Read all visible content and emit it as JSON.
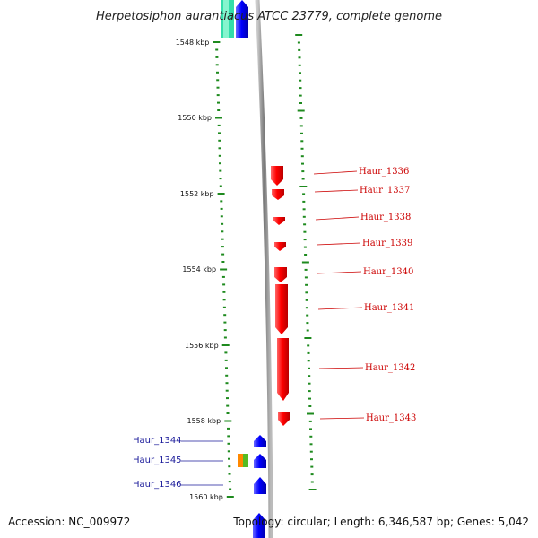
{
  "title": "Herpetosiphon aurantiacus ATCC 23779, complete genome",
  "accession": "Accession: NC_009972",
  "summary": "Topology: circular; Length: 6,346,587 bp; Genes: 5,042",
  "scale_labels": [
    "1548 kbp",
    "1550 kbp",
    "1552 kbp",
    "1554 kbp",
    "1556 kbp",
    "1558 kbp",
    "1560 kbp"
  ],
  "genes_right": [
    {
      "label": "Haur_1336"
    },
    {
      "label": "Haur_1337"
    },
    {
      "label": "Haur_1338"
    },
    {
      "label": "Haur_1339"
    },
    {
      "label": "Haur_1340"
    },
    {
      "label": "Haur_1341"
    },
    {
      "label": "Haur_1342"
    },
    {
      "label": "Haur_1343"
    }
  ],
  "genes_left": [
    {
      "label": "Haur_1344"
    },
    {
      "label": "Haur_1345"
    },
    {
      "label": "Haur_1346"
    }
  ],
  "colors": {
    "forward_gene": "#ff0000",
    "reverse_gene": "#0000ff",
    "backbone": "#999999",
    "tick": "#1e8a1e",
    "label_red": "#cc0000",
    "label_blue": "#1a1a9a",
    "teal": "#33ddaa",
    "orange": "#ff8800",
    "green": "#55bb22"
  }
}
